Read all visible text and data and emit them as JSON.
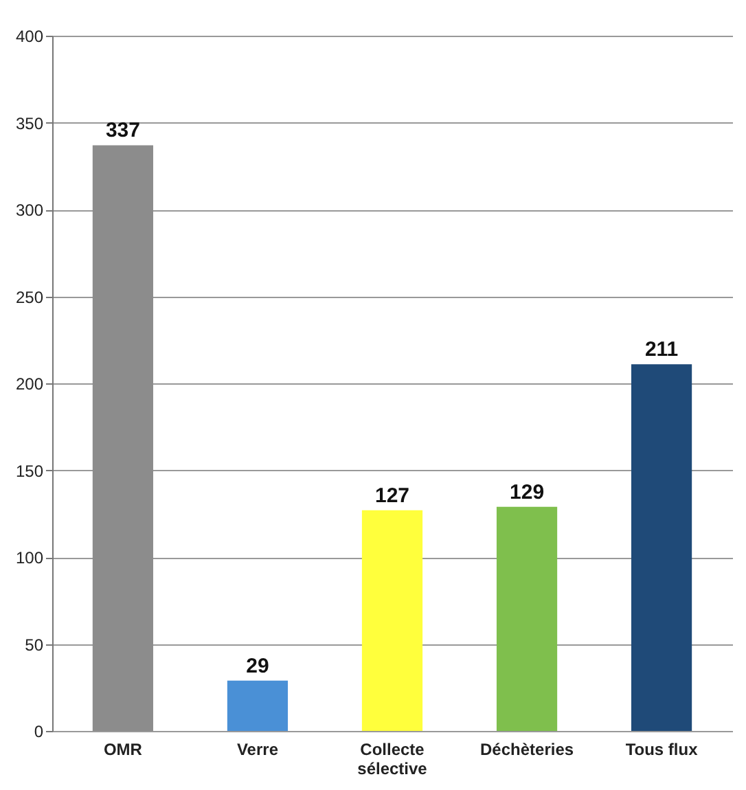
{
  "chart_data": {
    "type": "bar",
    "categories": [
      "OMR",
      "Verre",
      "Collecte\nsélective",
      "Déchèteries",
      "Tous flux"
    ],
    "values": [
      337,
      29,
      127,
      129,
      211
    ],
    "colors": [
      "#8c8c8c",
      "#4a90d6",
      "#ffff3c",
      "#7fbf4d",
      "#1f4a78"
    ],
    "ylim": [
      0,
      400
    ],
    "yticks": [
      0,
      50,
      100,
      150,
      200,
      250,
      300,
      350,
      400
    ],
    "grid": "y",
    "data_labels": true
  }
}
